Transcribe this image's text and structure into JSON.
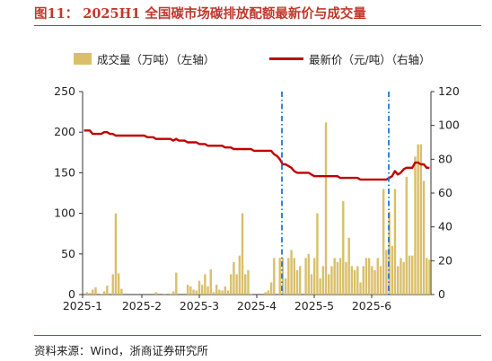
{
  "figure": {
    "title": "图11：  2025H1 全国碳市场碳排放配额最新价与成交量",
    "source": "资料来源：Wind，浙商证券研究所",
    "title_color": "#c0392b"
  },
  "chart_data": {
    "type": "bar+line",
    "legend": {
      "bar_label": "成交量（万吨）（左轴）",
      "line_label": "最新价（元/吨）（右轴）",
      "placement": "top"
    },
    "x_ticks": [
      "2025-1",
      "2025-2",
      "2025-3",
      "2025-4",
      "2025-5",
      "2025-6"
    ],
    "y_left": {
      "range": [
        0,
        250
      ],
      "ticks": [
        "0",
        "50",
        "100",
        "150",
        "200",
        "250"
      ]
    },
    "y_right": {
      "range": [
        0,
        120
      ],
      "ticks": [
        "0",
        "20",
        "40",
        "60",
        "80",
        "100",
        "120"
      ]
    },
    "colors": {
      "bar": "#d9bf6a",
      "line": "#c00000",
      "marker": "#1f77d4"
    },
    "volume": [
      0,
      3,
      2,
      6,
      9,
      0,
      1,
      4,
      11,
      0,
      25,
      100,
      26,
      7,
      0,
      0,
      0,
      0,
      0,
      0,
      0,
      0,
      0,
      0,
      0,
      3,
      0,
      0,
      1,
      0,
      1,
      4,
      27,
      0,
      0,
      0,
      12,
      10,
      6,
      5,
      17,
      12,
      25,
      10,
      31,
      3,
      12,
      6,
      5,
      10,
      5,
      25,
      40,
      25,
      48,
      100,
      25,
      30,
      1,
      0,
      0,
      0,
      0,
      3,
      5,
      15,
      45,
      0,
      45,
      45,
      20,
      45,
      55,
      45,
      30,
      35,
      0,
      45,
      50,
      25,
      45,
      100,
      20,
      35,
      212,
      25,
      35,
      45,
      40,
      45,
      115,
      40,
      70,
      35,
      30,
      35,
      15,
      35,
      45,
      45,
      35,
      30,
      45,
      35,
      130,
      55,
      102,
      60,
      130,
      35,
      45,
      40,
      145,
      48,
      48,
      170,
      185,
      185,
      140,
      45,
      43
    ],
    "price": [
      97,
      97,
      97,
      95,
      95,
      95,
      95,
      96,
      96,
      95,
      95,
      94,
      94,
      94,
      94,
      94,
      94,
      94,
      94,
      94,
      94,
      94,
      93,
      93,
      93,
      92,
      92,
      92,
      92,
      92,
      92,
      91,
      92,
      91,
      91,
      91,
      90,
      90,
      90,
      90,
      89,
      89,
      89,
      88,
      88,
      88,
      88,
      88,
      88,
      87,
      87,
      87,
      86,
      86,
      86,
      86,
      86,
      86,
      86,
      85,
      85,
      85,
      85,
      85,
      85,
      85,
      83,
      82,
      80,
      77,
      77,
      76,
      75,
      73,
      72,
      72,
      72,
      72,
      72,
      71,
      70,
      70,
      70,
      70,
      70,
      70,
      70,
      70,
      70,
      69,
      69,
      69,
      69,
      69,
      69,
      69,
      68,
      68,
      68,
      68,
      68,
      68,
      68,
      68,
      68,
      68,
      69,
      70,
      73,
      71,
      72,
      74,
      75,
      75,
      75,
      78,
      78,
      77,
      77,
      75,
      75
    ],
    "event_markers": [
      {
        "type": "dash-dot vertical line",
        "between": [
          "2025-4",
          "2025-5"
        ]
      },
      {
        "type": "dash-dot vertical line",
        "between": [
          "2025-6",
          "end"
        ]
      }
    ]
  }
}
